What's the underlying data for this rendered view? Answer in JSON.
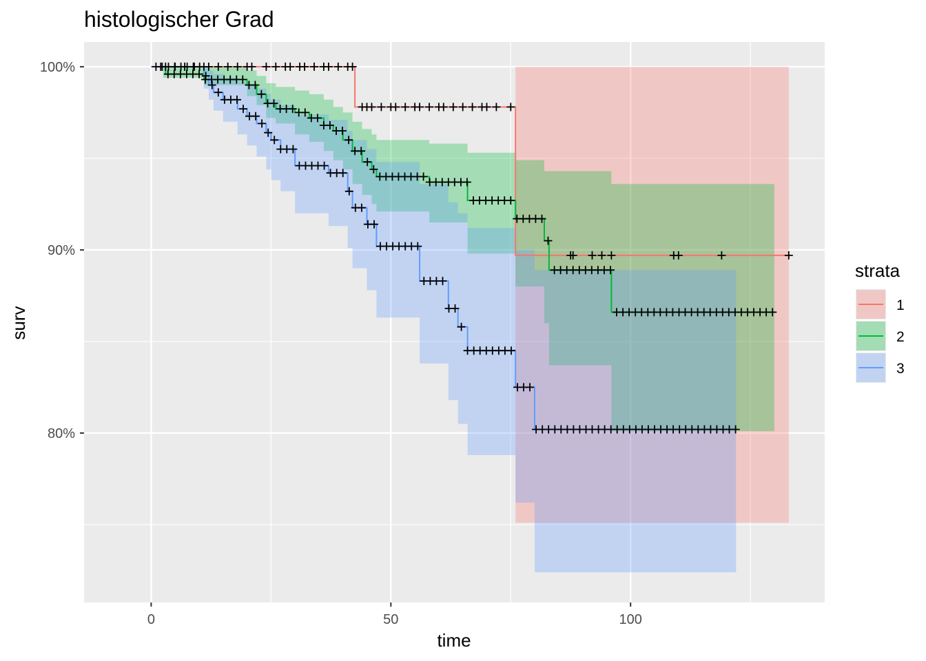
{
  "chart_data": {
    "type": "line",
    "subtype": "kaplan-meier survival curves with confidence bands",
    "title": "histologischer Grad",
    "xlabel": "time",
    "ylabel": "surv",
    "xlim": [
      -14,
      140.5
    ],
    "ylim": [
      0.7075,
      1.0135
    ],
    "x_ticks": [
      0,
      50,
      100
    ],
    "x_tick_labels": [
      "0",
      "50",
      "100"
    ],
    "y_ticks": [
      0.8,
      0.9,
      1.0
    ],
    "y_tick_labels": [
      "80%",
      "90%",
      "100%"
    ],
    "grid": true,
    "legend": {
      "title": "strata",
      "position": "right",
      "entries": [
        "1",
        "2",
        "3"
      ]
    },
    "colors": {
      "1": "#F8766D",
      "2": "#00BA38",
      "3": "#619CFF",
      "panel": "#EBEBEB",
      "censor": "#000000"
    },
    "series": [
      {
        "name": "1",
        "color": "#F8766D",
        "steps": [
          [
            0,
            1.0
          ],
          [
            42.5,
            0.978
          ],
          [
            76,
            0.897
          ],
          [
            133,
            0.897
          ]
        ],
        "ci_lower": [
          [
            0,
            1.0
          ],
          [
            42.5,
            1.0
          ],
          [
            76,
            0.751
          ],
          [
            133,
            0.751
          ]
        ],
        "ci_upper": [
          [
            0,
            1.0
          ],
          [
            42.5,
            1.0
          ],
          [
            76,
            1.0
          ],
          [
            133,
            1.0
          ]
        ],
        "censor_times": [
          2,
          3,
          5,
          7,
          9,
          11,
          12,
          14,
          16,
          18,
          20,
          21,
          24,
          26,
          28,
          29,
          31,
          32,
          34,
          36,
          37,
          39,
          41,
          42,
          44,
          45,
          46,
          48,
          50,
          51,
          53,
          55,
          56,
          58,
          60,
          61,
          63,
          65,
          67,
          69,
          70,
          72,
          75,
          87.5,
          88,
          92,
          94,
          96,
          109,
          110,
          119,
          133
        ]
      },
      {
        "name": "2",
        "color": "#00BA38",
        "steps": [
          [
            2.5,
            1.0
          ],
          [
            3,
            0.996
          ],
          [
            11,
            0.993
          ],
          [
            20,
            0.99
          ],
          [
            22,
            0.985
          ],
          [
            24,
            0.98
          ],
          [
            26,
            0.977
          ],
          [
            30,
            0.975
          ],
          [
            33,
            0.972
          ],
          [
            36,
            0.968
          ],
          [
            38,
            0.965
          ],
          [
            40,
            0.96
          ],
          [
            42,
            0.954
          ],
          [
            44,
            0.948
          ],
          [
            46,
            0.944
          ],
          [
            47,
            0.94
          ],
          [
            58,
            0.937
          ],
          [
            66,
            0.927
          ],
          [
            76,
            0.917
          ],
          [
            82,
            0.905
          ],
          [
            83,
            0.889
          ],
          [
            96,
            0.866
          ],
          [
            130,
            0.866
          ]
        ],
        "ci_lower": [
          [
            2.5,
            0.994
          ],
          [
            11,
            0.99
          ],
          [
            20,
            0.984
          ],
          [
            22,
            0.979
          ],
          [
            24,
            0.972
          ],
          [
            26,
            0.969
          ],
          [
            30,
            0.963
          ],
          [
            33,
            0.959
          ],
          [
            36,
            0.954
          ],
          [
            38,
            0.949
          ],
          [
            40,
            0.944
          ],
          [
            42,
            0.936
          ],
          [
            44,
            0.93
          ],
          [
            46,
            0.925
          ],
          [
            47,
            0.921
          ],
          [
            58,
            0.915
          ],
          [
            66,
            0.898
          ],
          [
            76,
            0.88
          ],
          [
            82,
            0.86
          ],
          [
            83,
            0.837
          ],
          [
            96,
            0.801
          ],
          [
            130,
            0.801
          ]
        ],
        "ci_upper": [
          [
            2.5,
            1.0
          ],
          [
            11,
            1.0
          ],
          [
            20,
            0.998
          ],
          [
            22,
            0.995
          ],
          [
            24,
            0.991
          ],
          [
            26,
            0.989
          ],
          [
            30,
            0.987
          ],
          [
            33,
            0.985
          ],
          [
            36,
            0.982
          ],
          [
            38,
            0.978
          ],
          [
            40,
            0.975
          ],
          [
            42,
            0.97
          ],
          [
            44,
            0.966
          ],
          [
            46,
            0.963
          ],
          [
            47,
            0.96
          ],
          [
            58,
            0.958
          ],
          [
            66,
            0.953
          ],
          [
            76,
            0.949
          ],
          [
            82,
            0.943
          ],
          [
            83,
            0.943
          ],
          [
            96,
            0.936
          ],
          [
            130,
            0.936
          ]
        ]
      },
      {
        "name": "3",
        "color": "#619CFF",
        "steps": [
          [
            0,
            1.0
          ],
          [
            11,
            0.995
          ],
          [
            12,
            0.99
          ],
          [
            13,
            0.986
          ],
          [
            15,
            0.982
          ],
          [
            18,
            0.977
          ],
          [
            20,
            0.973
          ],
          [
            22,
            0.969
          ],
          [
            24,
            0.964
          ],
          [
            25,
            0.96
          ],
          [
            27,
            0.955
          ],
          [
            30,
            0.946
          ],
          [
            37,
            0.942
          ],
          [
            41,
            0.932
          ],
          [
            42,
            0.923
          ],
          [
            45,
            0.914
          ],
          [
            47,
            0.902
          ],
          [
            56,
            0.883
          ],
          [
            62,
            0.868
          ],
          [
            64,
            0.858
          ],
          [
            66,
            0.845
          ],
          [
            76,
            0.825
          ],
          [
            80,
            0.802
          ],
          [
            122,
            0.802
          ]
        ],
        "ci_lower": [
          [
            0,
            1.0
          ],
          [
            11,
            0.988
          ],
          [
            12,
            0.982
          ],
          [
            13,
            0.976
          ],
          [
            15,
            0.97
          ],
          [
            18,
            0.963
          ],
          [
            20,
            0.957
          ],
          [
            22,
            0.951
          ],
          [
            24,
            0.944
          ],
          [
            25,
            0.938
          ],
          [
            27,
            0.932
          ],
          [
            30,
            0.92
          ],
          [
            37,
            0.913
          ],
          [
            41,
            0.901
          ],
          [
            42,
            0.89
          ],
          [
            45,
            0.878
          ],
          [
            47,
            0.863
          ],
          [
            56,
            0.838
          ],
          [
            62,
            0.818
          ],
          [
            64,
            0.805
          ],
          [
            66,
            0.788
          ],
          [
            76,
            0.762
          ],
          [
            80,
            0.724
          ],
          [
            122,
            0.724
          ]
        ],
        "ci_upper": [
          [
            0,
            1.0
          ],
          [
            11,
            1.0
          ],
          [
            12,
            0.998
          ],
          [
            13,
            0.996
          ],
          [
            15,
            0.994
          ],
          [
            18,
            0.992
          ],
          [
            20,
            0.99
          ],
          [
            22,
            0.988
          ],
          [
            24,
            0.985
          ],
          [
            25,
            0.982
          ],
          [
            27,
            0.979
          ],
          [
            30,
            0.974
          ],
          [
            37,
            0.971
          ],
          [
            41,
            0.965
          ],
          [
            42,
            0.96
          ],
          [
            45,
            0.955
          ],
          [
            47,
            0.948
          ],
          [
            56,
            0.936
          ],
          [
            62,
            0.926
          ],
          [
            64,
            0.92
          ],
          [
            66,
            0.912
          ],
          [
            76,
            0.9
          ],
          [
            80,
            0.889
          ],
          [
            122,
            0.889
          ]
        ]
      }
    ]
  }
}
